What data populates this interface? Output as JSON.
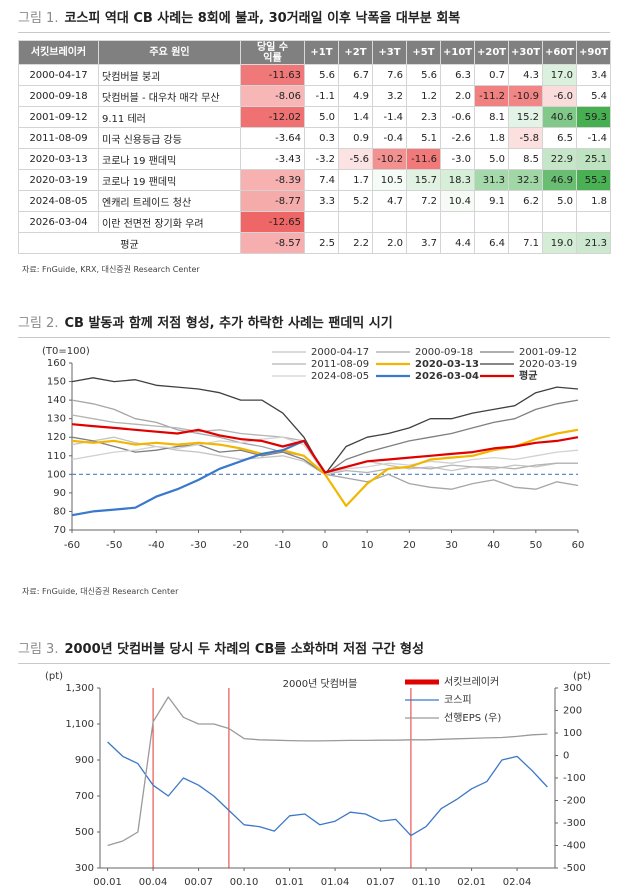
{
  "figure1": {
    "label": "그림 1.",
    "title": "코스피 역대 CB 사례는 8회에 불과, 30거래일 이후 낙폭을 대부분 회복",
    "table": {
      "header": [
        "서킷브레이커",
        "주요 원인",
        "당일 수익률",
        "+1T",
        "+2T",
        "+3T",
        "+5T",
        "+10T",
        "+20T",
        "+30T",
        "+60T",
        "+90T"
      ],
      "rows": [
        [
          "2000-04-17",
          "닷컴버블 붕괴",
          "-11.63",
          "5.6",
          "6.7",
          "7.6",
          "5.6",
          "6.3",
          "0.7",
          "4.3",
          "17.0",
          "3.4"
        ],
        [
          "2000-09-18",
          "닷컴버블 - 대우차 매각 무산",
          "-8.06",
          "-1.1",
          "4.9",
          "3.2",
          "1.2",
          "2.0",
          "-11.2",
          "-10.9",
          "-6.0",
          "5.4"
        ],
        [
          "2001-09-12",
          "9.11 테러",
          "-12.02",
          "5.0",
          "1.4",
          "-1.4",
          "2.3",
          "-0.6",
          "8.1",
          "15.2",
          "40.6",
          "59.3"
        ],
        [
          "2011-08-09",
          "미국 신용등급 강등",
          "-3.64",
          "0.3",
          "0.9",
          "-0.4",
          "5.1",
          "-2.6",
          "1.8",
          "-5.8",
          "6.5",
          "-1.4"
        ],
        [
          "2020-03-13",
          "코로나 19 팬데믹",
          "-3.43",
          "-3.2",
          "-5.6",
          "-10.2",
          "-11.6",
          "-3.0",
          "5.0",
          "8.5",
          "22.9",
          "25.1"
        ],
        [
          "2020-03-19",
          "코로나 19 팬데믹",
          "-8.39",
          "7.4",
          "1.7",
          "10.5",
          "15.7",
          "18.3",
          "31.3",
          "32.3",
          "46.9",
          "55.3"
        ],
        [
          "2024-08-05",
          "엔캐리 트레이드 청산",
          "-8.77",
          "3.3",
          "5.2",
          "4.7",
          "7.2",
          "10.4",
          "9.1",
          "6.2",
          "5.0",
          "1.8"
        ],
        [
          "2026-03-04",
          "이란 전면전 장기화 우려",
          "-12.65"
        ],
        [
          "평균",
          "-8.57",
          "2.5",
          "2.2",
          "2.0",
          "3.7",
          "4.4",
          "6.4",
          "7.1",
          "19.0",
          "21.3"
        ]
      ]
    },
    "source": "자료: FnGuide, KRX, 대신증권 Research Center"
  },
  "chart_data": [
    {
      "type": "line",
      "figure_label": "그림 2.",
      "title": "CB 발동과 함께 저점 형성, 추가 하락한 사례는 팬데믹 시기",
      "y_label": "(T0=100)",
      "x": [
        -60,
        -55,
        -50,
        -45,
        -40,
        -35,
        -30,
        -25,
        -20,
        -15,
        -10,
        -5,
        0,
        5,
        10,
        15,
        20,
        25,
        30,
        35,
        40,
        45,
        50,
        55,
        60
      ],
      "xlim": [
        -60,
        60
      ],
      "xticks": [
        -60,
        -50,
        -40,
        -30,
        -20,
        -10,
        0,
        10,
        20,
        30,
        40,
        50,
        60
      ],
      "ylim": [
        70,
        160
      ],
      "yticks": [
        70,
        80,
        90,
        100,
        110,
        120,
        130,
        140,
        150,
        160
      ],
      "reference_line": {
        "value": 100,
        "color": "#4a7cc9"
      },
      "series": [
        {
          "name": "2000-04-17",
          "color": "#c4c4c4",
          "values": [
            116,
            118,
            120,
            117,
            115,
            113,
            112,
            110,
            108,
            109,
            110,
            107,
            100,
            104,
            107,
            105,
            103,
            104,
            102,
            104,
            103,
            105,
            104,
            106,
            106
          ]
        },
        {
          "name": "2000-09-18",
          "color": "#a6a6a6",
          "values": [
            140,
            138,
            135,
            130,
            128,
            124,
            122,
            120,
            117,
            115,
            112,
            110,
            100,
            98,
            96,
            100,
            95,
            93,
            92,
            95,
            97,
            93,
            92,
            96,
            94
          ]
        },
        {
          "name": "2001-09-12",
          "color": "#7f7f7f",
          "values": [
            120,
            118,
            115,
            112,
            113,
            115,
            116,
            112,
            113,
            110,
            112,
            108,
            100,
            108,
            112,
            115,
            118,
            120,
            122,
            125,
            128,
            130,
            135,
            138,
            140
          ]
        },
        {
          "name": "2011-08-09",
          "color": "#b4b4b4",
          "values": [
            132,
            130,
            128,
            127,
            126,
            125,
            123,
            124,
            122,
            121,
            120,
            118,
            100,
            102,
            101,
            103,
            104,
            103,
            105,
            104,
            104,
            103,
            105,
            106,
            106
          ]
        },
        {
          "name": "2020-03-13",
          "color": "#f2b600",
          "emphasis": true,
          "values": [
            118,
            117,
            118,
            116,
            117,
            116,
            117,
            116,
            114,
            111,
            113,
            110,
            100,
            83,
            95,
            103,
            104,
            108,
            109,
            110,
            113,
            115,
            119,
            122,
            124
          ]
        },
        {
          "name": "2020-03-19",
          "color": "#404040",
          "values": [
            150,
            152,
            150,
            151,
            148,
            147,
            146,
            144,
            140,
            140,
            133,
            120,
            100,
            115,
            120,
            122,
            125,
            130,
            130,
            133,
            135,
            137,
            144,
            147,
            146
          ]
        },
        {
          "name": "2024-08-05",
          "color": "#d2d2d2",
          "values": [
            108,
            110,
            112,
            113,
            115,
            114,
            116,
            118,
            117,
            119,
            120,
            116,
            100,
            103,
            104,
            106,
            105,
            107,
            106,
            108,
            109,
            108,
            110,
            112,
            113
          ]
        },
        {
          "name": "2026-03-04",
          "color": "#3a78cc",
          "emphasis": true,
          "values": [
            78,
            80,
            81,
            82,
            88,
            92,
            97,
            103,
            107,
            111,
            113,
            118,
            101,
            null,
            null,
            null,
            null,
            null,
            null,
            null,
            null,
            null,
            null,
            null,
            null
          ]
        },
        {
          "name": "평균",
          "color": "#e00000",
          "emphasis": true,
          "values": [
            127,
            126,
            125,
            124,
            123,
            122,
            124,
            121,
            119,
            118,
            115,
            118,
            101,
            104,
            107,
            108,
            109,
            110,
            111,
            112,
            114,
            115,
            117,
            118,
            120
          ]
        }
      ],
      "source": "자료: FnGuide, 대신증권 Research Center"
    },
    {
      "type": "line",
      "figure_label": "그림 3.",
      "title": "2000년 닷컴버블 당시 두 차례의 CB를 소화하며 저점 구간 형성",
      "annotation": "2000년 닷컴버블",
      "y_label": "(pt)",
      "y2_label": "(pt)",
      "x": [
        "00.01",
        null,
        null,
        "00.04",
        null,
        null,
        "00.07",
        null,
        null,
        "00.10",
        null,
        null,
        "01.01",
        null,
        null,
        "01.04",
        null,
        null,
        "01.07",
        null,
        null,
        "01.10",
        null,
        null,
        "02.01",
        null,
        null,
        "02.04",
        null,
        null
      ],
      "ylim": [
        300,
        1300
      ],
      "yticks": [
        300,
        500,
        700,
        900,
        {
          "value": 1100,
          "label": "1,100"
        },
        {
          "value": 1300,
          "label": "1,300"
        }
      ],
      "y2lim": [
        -500,
        300
      ],
      "y2ticks": [
        -500,
        -400,
        -300,
        -200,
        -100,
        0,
        100,
        200,
        300
      ],
      "series": [
        {
          "name": "서킷브레이커",
          "color": "#e00000",
          "type": "vline",
          "at": [
            3,
            8,
            20
          ]
        },
        {
          "name": "코스피",
          "color": "#3c78c8",
          "values": [
            1000,
            920,
            880,
            760,
            700,
            800,
            760,
            700,
            620,
            540,
            530,
            505,
            590,
            600,
            540,
            560,
            610,
            600,
            560,
            570,
            480,
            530,
            630,
            680,
            740,
            780,
            900,
            920,
            840,
            750
          ]
        },
        {
          "name": "선행EPS (우)",
          "color": "#9a9a9a",
          "axis": "y2",
          "values": [
            -400,
            -380,
            -340,
            150,
            260,
            170,
            140,
            140,
            120,
            75,
            70,
            68,
            66,
            65,
            65,
            66,
            67,
            67,
            68,
            68,
            70,
            70,
            72,
            74,
            76,
            78,
            80,
            85,
            92,
            95
          ]
        }
      ]
    }
  ]
}
